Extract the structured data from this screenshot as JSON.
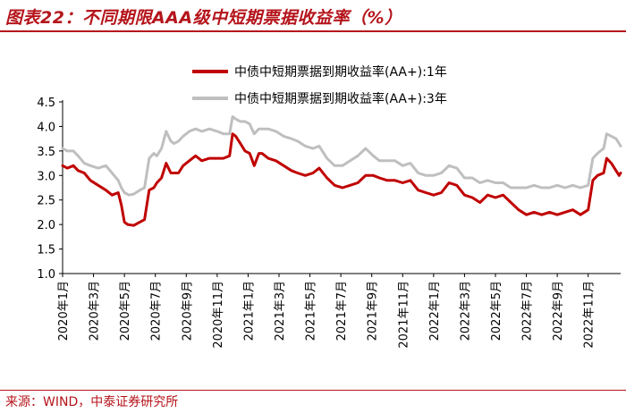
{
  "header": {
    "title": "图表22：不同期限AAA级中短期票据收益率（%）"
  },
  "footer": {
    "source": "来源：WIND，中泰证券研究所"
  },
  "colors": {
    "accent": "#b5141b",
    "series_1y": "#c00000",
    "series_3y": "#bfbfbf"
  },
  "chart_data": {
    "type": "line",
    "title": "不同期限AAA级中短期票据收益率（%）",
    "xlabel": "",
    "ylabel": "",
    "ylim": [
      1.0,
      4.5
    ],
    "yticks": [
      "1.0",
      "1.5",
      "2.0",
      "2.5",
      "3.0",
      "3.5",
      "4.0",
      "4.5"
    ],
    "xticks": [
      "2020年1月",
      "2020年3月",
      "2020年5月",
      "2020年7月",
      "2020年9月",
      "2020年11月",
      "2021年1月",
      "2021年3月",
      "2021年5月",
      "2021年7月",
      "2021年9月",
      "2021年11月",
      "2022年1月",
      "2022年3月",
      "2022年5月",
      "2022年7月",
      "2022年9月",
      "2022年11月"
    ],
    "x_unit": "months since 2020年1月",
    "grid": false,
    "legend_position": "top",
    "series": [
      {
        "name": "中债中短期票据到期收益率(AA+):1年",
        "color": "#c00000",
        "x": [
          0,
          0.3,
          0.7,
          1.0,
          1.4,
          1.8,
          2.3,
          2.8,
          3.2,
          3.6,
          3.8,
          4.0,
          4.2,
          4.6,
          5.0,
          5.3,
          5.6,
          5.9,
          6.1,
          6.4,
          6.7,
          7.0,
          7.2,
          7.5,
          7.8,
          8.2,
          8.6,
          9.0,
          9.5,
          10.0,
          10.4,
          10.8,
          11.0,
          11.2,
          11.5,
          11.8,
          12.1,
          12.4,
          12.7,
          12.9,
          13.3,
          13.8,
          14.3,
          14.8,
          15.2,
          15.7,
          16.2,
          16.6,
          17.1,
          17.6,
          18.1,
          18.6,
          19.1,
          19.6,
          20.1,
          20.5,
          21.0,
          21.5,
          22.0,
          22.5,
          23.0,
          23.5,
          24.0,
          24.5,
          25.0,
          25.5,
          26.0,
          26.5,
          27.0,
          27.5,
          28.0,
          28.5,
          29.0,
          29.5,
          30.0,
          30.5,
          31.0,
          31.5,
          32.0,
          32.5,
          33.0,
          33.5,
          34.0,
          34.3,
          34.6,
          35.0,
          35.2,
          35.5,
          35.8,
          36.0,
          36.1
        ],
        "values": [
          3.2,
          3.15,
          3.2,
          3.1,
          3.05,
          2.9,
          2.8,
          2.7,
          2.6,
          2.65,
          2.4,
          2.05,
          2.0,
          1.98,
          2.05,
          2.1,
          2.7,
          2.75,
          2.85,
          2.95,
          3.25,
          3.05,
          3.05,
          3.05,
          3.2,
          3.3,
          3.4,
          3.3,
          3.35,
          3.35,
          3.35,
          3.4,
          3.85,
          3.8,
          3.65,
          3.5,
          3.45,
          3.2,
          3.45,
          3.45,
          3.35,
          3.3,
          3.2,
          3.1,
          3.05,
          3.0,
          3.05,
          3.15,
          2.95,
          2.8,
          2.75,
          2.8,
          2.85,
          3.0,
          3.0,
          2.95,
          2.9,
          2.9,
          2.85,
          2.9,
          2.7,
          2.65,
          2.6,
          2.65,
          2.85,
          2.8,
          2.6,
          2.55,
          2.45,
          2.6,
          2.55,
          2.6,
          2.45,
          2.3,
          2.2,
          2.25,
          2.2,
          2.25,
          2.2,
          2.25,
          2.3,
          2.2,
          2.3,
          2.9,
          3.0,
          3.05,
          3.35,
          3.25,
          3.1,
          3.0,
          3.05
        ]
      },
      {
        "name": "中债中短期票据到期收益率(AA+):3年",
        "color": "#bfbfbf",
        "x": [
          0,
          0.3,
          0.7,
          1.0,
          1.4,
          1.8,
          2.3,
          2.8,
          3.2,
          3.6,
          3.8,
          4.0,
          4.3,
          4.6,
          5.0,
          5.3,
          5.6,
          5.9,
          6.1,
          6.4,
          6.7,
          7.0,
          7.2,
          7.5,
          7.8,
          8.2,
          8.6,
          9.0,
          9.5,
          10.0,
          10.4,
          10.8,
          11.0,
          11.2,
          11.5,
          11.8,
          12.1,
          12.4,
          12.7,
          12.9,
          13.3,
          13.8,
          14.3,
          14.8,
          15.2,
          15.7,
          16.2,
          16.6,
          17.1,
          17.6,
          18.1,
          18.6,
          19.1,
          19.6,
          20.1,
          20.5,
          21.0,
          21.5,
          22.0,
          22.5,
          23.0,
          23.5,
          24.0,
          24.5,
          25.0,
          25.5,
          26.0,
          26.5,
          27.0,
          27.5,
          28.0,
          28.5,
          29.0,
          29.5,
          30.0,
          30.5,
          31.0,
          31.5,
          32.0,
          32.5,
          33.0,
          33.5,
          34.0,
          34.3,
          34.6,
          35.0,
          35.2,
          35.5,
          35.8,
          36.0,
          36.1
        ],
        "values": [
          3.55,
          3.5,
          3.5,
          3.4,
          3.25,
          3.2,
          3.15,
          3.2,
          3.05,
          2.9,
          2.75,
          2.65,
          2.6,
          2.62,
          2.7,
          2.75,
          3.35,
          3.45,
          3.4,
          3.55,
          3.9,
          3.7,
          3.65,
          3.7,
          3.8,
          3.9,
          3.95,
          3.9,
          3.95,
          3.9,
          3.85,
          3.85,
          4.2,
          4.15,
          4.1,
          4.1,
          4.05,
          3.85,
          3.95,
          3.95,
          3.95,
          3.9,
          3.8,
          3.75,
          3.7,
          3.6,
          3.55,
          3.6,
          3.35,
          3.2,
          3.2,
          3.3,
          3.4,
          3.55,
          3.4,
          3.3,
          3.3,
          3.3,
          3.2,
          3.25,
          3.05,
          3.0,
          3.0,
          3.05,
          3.2,
          3.15,
          2.95,
          2.95,
          2.85,
          2.9,
          2.85,
          2.85,
          2.75,
          2.75,
          2.75,
          2.8,
          2.75,
          2.75,
          2.8,
          2.75,
          2.8,
          2.75,
          2.8,
          3.35,
          3.45,
          3.55,
          3.85,
          3.8,
          3.75,
          3.65,
          3.6
        ]
      }
    ]
  }
}
